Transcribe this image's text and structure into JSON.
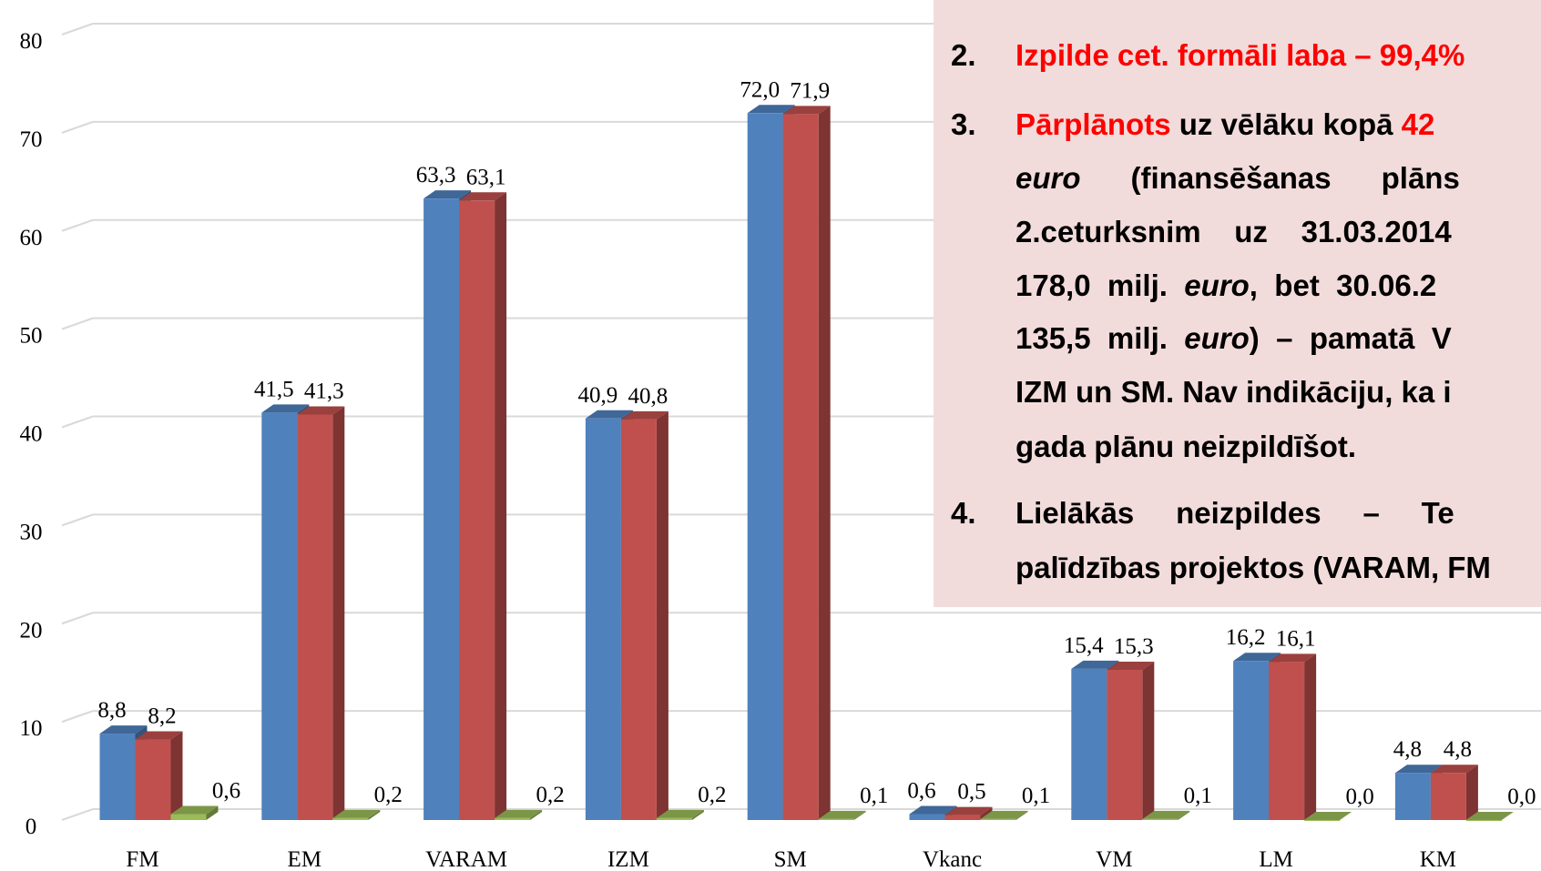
{
  "chart_data": {
    "type": "bar3d",
    "categories": [
      "FM",
      "EM",
      "VARAM",
      "IZM",
      "SM",
      "Vkanc",
      "VM",
      "LM",
      "KM"
    ],
    "series": [
      {
        "color": "#4f81bd",
        "values": [
          8.8,
          41.5,
          63.3,
          40.9,
          72.0,
          0.6,
          15.4,
          16.2,
          4.8
        ],
        "value_labels": [
          "8,8",
          "41,5",
          "63,3",
          "40,9",
          "72,0",
          "0,6",
          "15,4",
          "16,2",
          "4,8"
        ]
      },
      {
        "color": "#c0504d",
        "values": [
          8.2,
          41.3,
          63.1,
          40.8,
          71.9,
          0.5,
          15.3,
          16.1,
          4.8
        ],
        "value_labels": [
          "8,2",
          "41,3",
          "63,1",
          "40,8",
          "71,9",
          "0,5",
          "15,3",
          "16,1",
          "4,8"
        ]
      },
      {
        "color": "#9bbb59",
        "values": [
          0.6,
          0.2,
          0.2,
          0.2,
          0.1,
          0.1,
          0.1,
          0.0,
          0.0
        ],
        "value_labels": [
          "0,6",
          "0,2",
          "0,2",
          "0,2",
          "0,1",
          "0,1",
          "0,1",
          "0,0",
          "0,0"
        ]
      }
    ],
    "ylim": [
      0,
      80
    ],
    "yticks": [
      0,
      10,
      20,
      30,
      40,
      50,
      60,
      70,
      80
    ],
    "grid": true
  },
  "text_box": {
    "items": [
      {
        "number": "2.",
        "color": "#ff0000",
        "lines": [
          [
            {
              "text": "Izpilde cet. ",
              "color": "#ff0000"
            },
            {
              "text": "formāli laba – 99,4%",
              "color": "#ff0000"
            }
          ]
        ]
      },
      {
        "number": "3.",
        "color": "#ff0000",
        "lines": [
          [
            {
              "text": "Pārplānots",
              "color": "#ff0000"
            },
            {
              "text": " uz vēlāku kopā "
            },
            {
              "text": "42",
              "color": "#ff0000"
            }
          ],
          [
            {
              "text": "euro",
              "italic": true
            },
            {
              "text": "      (finansēšanas      plāns"
            }
          ],
          [
            {
              "text": "2.ceturksnim    uz    31.03.2014"
            }
          ],
          [
            {
              "text": "178,0  milj.  "
            },
            {
              "text": "euro",
              "italic": true
            },
            {
              "text": ",  bet  30.06.2"
            }
          ],
          [
            {
              "text": "135,5  milj.  "
            },
            {
              "text": "euro",
              "italic": true
            },
            {
              "text": ")  –  pamatā  V"
            }
          ],
          [
            {
              "text": "IZM un SM. Nav indikāciju, ka i"
            }
          ],
          [
            {
              "text": "gada plānu neizpildīšot."
            }
          ]
        ]
      },
      {
        "number": "4.",
        "color": "#000000",
        "lines": [
          [
            {
              "text": "Lielākās     neizpildes     –     Te"
            }
          ],
          [
            {
              "text": "palīdzības projektos (VARAM, FM"
            }
          ]
        ]
      }
    ]
  }
}
